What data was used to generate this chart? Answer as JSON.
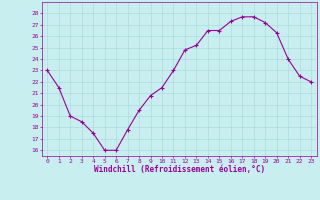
{
  "hours": [
    0,
    1,
    2,
    3,
    4,
    5,
    6,
    7,
    8,
    9,
    10,
    11,
    12,
    13,
    14,
    15,
    16,
    17,
    18,
    19,
    20,
    21,
    22,
    23
  ],
  "values": [
    23.0,
    21.5,
    19.0,
    18.5,
    17.5,
    16.0,
    16.0,
    17.8,
    19.5,
    20.8,
    21.5,
    23.0,
    24.8,
    25.2,
    26.5,
    26.5,
    27.3,
    27.7,
    27.7,
    27.2,
    26.3,
    24.0,
    22.5,
    22.0
  ],
  "line_color": "#990099",
  "marker": "+",
  "marker_size": 3,
  "bg_color": "#c8eef0",
  "grid_color": "#aadddd",
  "tick_color": "#990099",
  "xlabel": "Windchill (Refroidissement éolien,°C)",
  "ylim": [
    15.5,
    29.0
  ],
  "xlim": [
    -0.5,
    23.5
  ],
  "yticks": [
    16,
    17,
    18,
    19,
    20,
    21,
    22,
    23,
    24,
    25,
    26,
    27,
    28
  ],
  "xticks": [
    0,
    1,
    2,
    3,
    4,
    5,
    6,
    7,
    8,
    9,
    10,
    11,
    12,
    13,
    14,
    15,
    16,
    17,
    18,
    19,
    20,
    21,
    22,
    23
  ]
}
